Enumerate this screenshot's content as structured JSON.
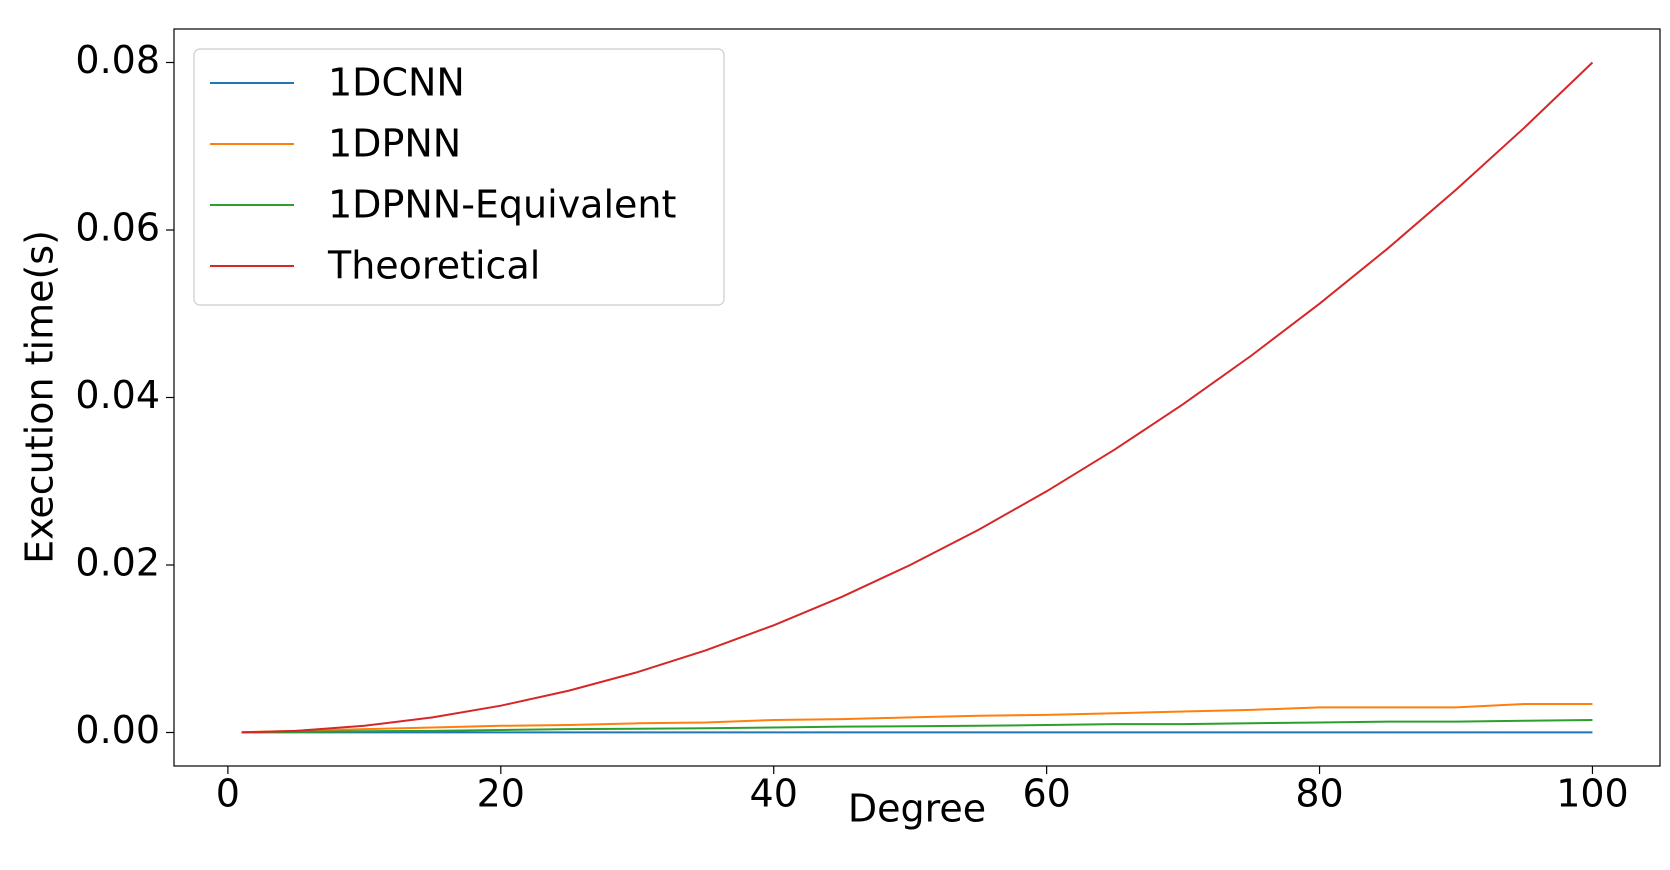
{
  "chart_data": {
    "type": "line",
    "xlabel": "Degree",
    "ylabel": "Execution time(s)",
    "x": [
      1,
      5,
      10,
      15,
      20,
      25,
      30,
      35,
      40,
      45,
      50,
      55,
      60,
      65,
      70,
      75,
      80,
      85,
      90,
      95,
      100
    ],
    "series": [
      {
        "name": "1DCNN",
        "color": "#1f77b4",
        "values": [
          1e-05,
          1e-05,
          1e-05,
          1e-05,
          1e-05,
          1e-05,
          1e-05,
          1e-05,
          1e-05,
          1e-05,
          1e-05,
          1e-05,
          1e-05,
          1e-05,
          1e-05,
          1e-05,
          1e-05,
          1e-05,
          1e-05,
          1e-05,
          1e-05
        ]
      },
      {
        "name": "1DPNN",
        "color": "#ff7f0e",
        "values": [
          3e-05,
          0.0002,
          0.0004,
          0.0006,
          0.0008,
          0.0009,
          0.0011,
          0.0012,
          0.0015,
          0.0016,
          0.0018,
          0.002,
          0.0021,
          0.0023,
          0.0025,
          0.0027,
          0.003,
          0.003,
          0.003,
          0.0034,
          0.0034
        ]
      },
      {
        "name": "1DPNN-Equivalent",
        "color": "#2ca02c",
        "values": [
          1e-05,
          8e-05,
          0.00015,
          0.0002,
          0.0003,
          0.0004,
          0.00045,
          0.0005,
          0.0006,
          0.0007,
          0.00075,
          0.0008,
          0.0009,
          0.001,
          0.001,
          0.0011,
          0.0012,
          0.0013,
          0.0013,
          0.0014,
          0.0015
        ]
      },
      {
        "name": "Theoretical",
        "color": "#d62728",
        "values": [
          8e-06,
          0.0002,
          0.0008,
          0.0018,
          0.0032,
          0.005,
          0.0072,
          0.0098,
          0.0128,
          0.0162,
          0.02,
          0.0242,
          0.0288,
          0.0338,
          0.0392,
          0.045,
          0.0512,
          0.0578,
          0.0648,
          0.0722,
          0.08
        ]
      }
    ],
    "xlim": [
      -3.95,
      104.95
    ],
    "xticks": [
      0,
      20,
      40,
      60,
      80,
      100
    ],
    "ylim": [
      -0.004,
      0.084
    ],
    "yticks": [
      {
        "value": 0,
        "label": "0.00"
      },
      {
        "value": 0.02,
        "label": "0.02"
      },
      {
        "value": 0.04,
        "label": "0.04"
      },
      {
        "value": 0.06,
        "label": "0.06"
      },
      {
        "value": 0.08,
        "label": "0.08"
      }
    ],
    "legend": "upper left"
  }
}
